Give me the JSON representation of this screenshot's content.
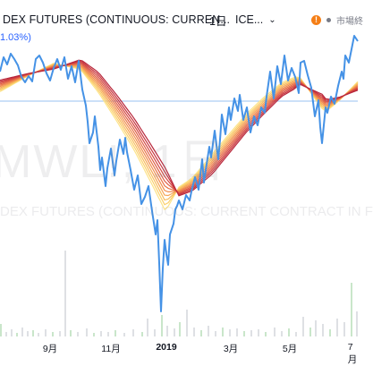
{
  "header": {
    "title": "DEX FUTURES (CONTINUOUS: CURREN...",
    "interval": "1日",
    "exchange": "ICE...",
    "status_label": "市場終",
    "change": "1.03%)"
  },
  "watermark": {
    "symbol": "MWL!, 1日",
    "name": "DEX FUTURES (CONTINUOUS: CURRENT CONTRACT IN F"
  },
  "icons": {
    "status": "info-icon",
    "dropdown": "chevron-down-icon"
  },
  "chart_data": {
    "type": "line",
    "x_tick_labels": [
      {
        "label": "9月",
        "x": 0.14
      },
      {
        "label": "11月",
        "x": 0.31
      },
      {
        "label": "2019",
        "x": 0.465,
        "emphasis": true
      },
      {
        "label": "3月",
        "x": 0.645
      },
      {
        "label": "5月",
        "x": 0.81
      },
      {
        "label": "7月",
        "x": 0.985
      }
    ],
    "horizontal_line_y": 113,
    "series": [
      {
        "kind": "price",
        "color": "#4592e6",
        "points": [
          [
            0,
            80
          ],
          [
            4,
            64
          ],
          [
            8,
            72
          ],
          [
            12,
            60
          ],
          [
            16,
            66
          ],
          [
            20,
            73
          ],
          [
            24,
            86
          ],
          [
            28,
            92
          ],
          [
            32,
            85
          ],
          [
            36,
            91
          ],
          [
            40,
            66
          ],
          [
            44,
            62
          ],
          [
            48,
            70
          ],
          [
            52,
            82
          ],
          [
            56,
            90
          ],
          [
            60,
            76
          ],
          [
            64,
            66
          ],
          [
            68,
            78
          ],
          [
            72,
            64
          ],
          [
            76,
            88
          ],
          [
            80,
            74
          ],
          [
            84,
            92
          ],
          [
            88,
            68
          ],
          [
            92,
            100
          ],
          [
            96,
            118
          ],
          [
            98,
            136
          ],
          [
            100,
            160
          ],
          [
            104,
            148
          ],
          [
            106,
            130
          ],
          [
            110,
            164
          ],
          [
            112,
            190
          ],
          [
            114,
            176
          ],
          [
            118,
            208
          ],
          [
            120,
            188
          ],
          [
            124,
            166
          ],
          [
            128,
            196
          ],
          [
            130,
            180
          ],
          [
            134,
            156
          ],
          [
            138,
            172
          ],
          [
            140,
            154
          ],
          [
            142,
            170
          ],
          [
            146,
            190
          ],
          [
            150,
            212
          ],
          [
            154,
            196
          ],
          [
            158,
            228
          ],
          [
            162,
            220
          ],
          [
            166,
            208
          ],
          [
            170,
            236
          ],
          [
            174,
            262
          ],
          [
            176,
            246
          ],
          [
            178,
            294
          ],
          [
            180,
            348
          ],
          [
            182,
            300
          ],
          [
            184,
            268
          ],
          [
            186,
            284
          ],
          [
            188,
            296
          ],
          [
            190,
            262
          ],
          [
            194,
            250
          ],
          [
            196,
            234
          ],
          [
            198,
            230
          ],
          [
            200,
            224
          ],
          [
            204,
            234
          ],
          [
            208,
            218
          ],
          [
            212,
            224
          ],
          [
            214,
            214
          ],
          [
            218,
            198
          ],
          [
            222,
            212
          ],
          [
            226,
            178
          ],
          [
            228,
            204
          ],
          [
            230,
            190
          ],
          [
            234,
            164
          ],
          [
            236,
            176
          ],
          [
            240,
            146
          ],
          [
            244,
            178
          ],
          [
            246,
            156
          ],
          [
            248,
            128
          ],
          [
            252,
            150
          ],
          [
            256,
            120
          ],
          [
            258,
            134
          ],
          [
            262,
            110
          ],
          [
            266,
            124
          ],
          [
            268,
            106
          ],
          [
            272,
            134
          ],
          [
            276,
            120
          ],
          [
            280,
            148
          ],
          [
            284,
            130
          ],
          [
            288,
            140
          ],
          [
            292,
            120
          ],
          [
            296,
            126
          ],
          [
            298,
            108
          ],
          [
            302,
            80
          ],
          [
            306,
            110
          ],
          [
            310,
            74
          ],
          [
            314,
            94
          ],
          [
            318,
            62
          ],
          [
            322,
            90
          ],
          [
            326,
            76
          ],
          [
            330,
            86
          ],
          [
            334,
            104
          ],
          [
            336,
            70
          ],
          [
            340,
            68
          ],
          [
            344,
            84
          ],
          [
            348,
            98
          ],
          [
            352,
            130
          ],
          [
            356,
            112
          ],
          [
            358,
            142
          ],
          [
            360,
            160
          ],
          [
            362,
            140
          ],
          [
            364,
            120
          ],
          [
            366,
            126
          ],
          [
            370,
            108
          ],
          [
            374,
            116
          ],
          [
            378,
            96
          ],
          [
            382,
            80
          ],
          [
            384,
            88
          ],
          [
            386,
            62
          ],
          [
            390,
            70
          ],
          [
            392,
            60
          ],
          [
            396,
            40
          ],
          [
            400,
            46
          ]
        ]
      },
      {
        "kind": "ribbon",
        "note": "moving average ribbon (yellow to red)",
        "colors": [
          "#fde389",
          "#fbd06c",
          "#f8bd5e",
          "#f5a555",
          "#f08d4e",
          "#e97549",
          "#df5e45",
          "#d44842",
          "#c7353e",
          "#b8273b"
        ],
        "base": [
          [
            0,
            96
          ],
          [
            30,
            84
          ],
          [
            60,
            74
          ],
          [
            90,
            72
          ],
          [
            110,
            92
          ],
          [
            130,
            120
          ],
          [
            150,
            150
          ],
          [
            170,
            185
          ],
          [
            185,
            212
          ],
          [
            200,
            214
          ],
          [
            215,
            206
          ],
          [
            235,
            186
          ],
          [
            255,
            162
          ],
          [
            275,
            138
          ],
          [
            295,
            118
          ],
          [
            315,
            100
          ],
          [
            335,
            90
          ],
          [
            350,
            104
          ],
          [
            365,
            118
          ],
          [
            380,
            110
          ],
          [
            400,
            96
          ]
        ],
        "dips": [
          [
            0,
            8
          ],
          [
            60,
            -4
          ],
          [
            110,
            14
          ],
          [
            150,
            22
          ],
          [
            185,
            30
          ],
          [
            200,
            -6
          ],
          [
            240,
            -14
          ],
          [
            290,
            -12
          ],
          [
            330,
            -8
          ],
          [
            360,
            10
          ],
          [
            400,
            -6
          ]
        ]
      }
    ],
    "volume_bars": [
      [
        0,
        14
      ],
      [
        6,
        5
      ],
      [
        12,
        8
      ],
      [
        18,
        4
      ],
      [
        24,
        10
      ],
      [
        30,
        6
      ],
      [
        36,
        7
      ],
      [
        42,
        4
      ],
      [
        50,
        8
      ],
      [
        58,
        5
      ],
      [
        66,
        6
      ],
      [
        72,
        96
      ],
      [
        78,
        7
      ],
      [
        86,
        5
      ],
      [
        96,
        9
      ],
      [
        104,
        4
      ],
      [
        112,
        6
      ],
      [
        120,
        5
      ],
      [
        128,
        7
      ],
      [
        138,
        4
      ],
      [
        148,
        8
      ],
      [
        158,
        5
      ],
      [
        164,
        20
      ],
      [
        172,
        8
      ],
      [
        180,
        24
      ],
      [
        186,
        12
      ],
      [
        194,
        9
      ],
      [
        200,
        16
      ],
      [
        208,
        30
      ],
      [
        216,
        10
      ],
      [
        224,
        7
      ],
      [
        232,
        12
      ],
      [
        240,
        6
      ],
      [
        248,
        10
      ],
      [
        256,
        8
      ],
      [
        264,
        9
      ],
      [
        272,
        6
      ],
      [
        280,
        7
      ],
      [
        288,
        8
      ],
      [
        296,
        5
      ],
      [
        306,
        10
      ],
      [
        314,
        6
      ],
      [
        322,
        9
      ],
      [
        330,
        5
      ],
      [
        338,
        22
      ],
      [
        346,
        10
      ],
      [
        352,
        18
      ],
      [
        360,
        14
      ],
      [
        368,
        8
      ],
      [
        376,
        20
      ],
      [
        384,
        16
      ],
      [
        392,
        60
      ],
      [
        398,
        28
      ]
    ]
  }
}
